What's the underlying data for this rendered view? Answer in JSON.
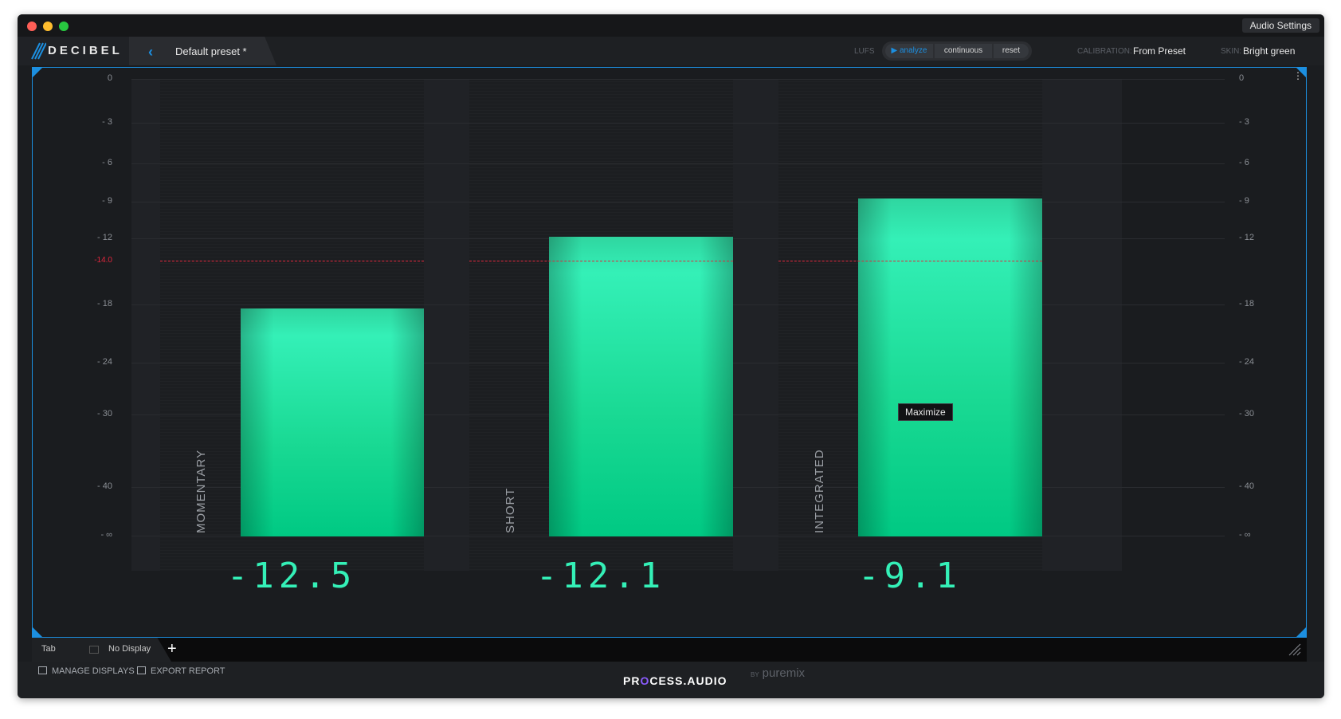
{
  "window": {
    "audio_settings_label": "Audio Settings"
  },
  "toolbar": {
    "logo_text": "DECIBEL",
    "preset_name": "Default preset *",
    "lufs_label": "LUFS",
    "analyze_label": "▶ analyze",
    "continuous_label": "continuous",
    "reset_label": "reset",
    "calibration_label": "CALIBRATION:",
    "calibration_value": "From Preset",
    "skin_label": "SKIN:",
    "skin_value": "Bright green"
  },
  "meter": {
    "scale_left": [
      "0",
      "- 3",
      "- 6",
      "- 9",
      "- 12",
      "- 18",
      "- 24",
      "- 30",
      "- 40",
      "- ∞"
    ],
    "scale_right": [
      "0",
      "- 3",
      "- 6",
      "- 9",
      "- 12",
      "- 18",
      "- 24",
      "- 30",
      "- 40",
      "- ∞"
    ],
    "target_label": "-14.0",
    "target_value": -14.0,
    "meters": [
      {
        "label": "MOMENTARY",
        "readout": "-12.5",
        "value": -12.5,
        "fill_fraction": 0.487
      },
      {
        "label": "SHORT",
        "readout": "-12.1",
        "value": -12.1,
        "fill_fraction": 0.641
      },
      {
        "label": "INTEGRATED",
        "readout": "-9.1",
        "value": -9.1,
        "fill_fraction": 0.723
      }
    ],
    "tooltip": "Maximize",
    "colors": {
      "accent": "#1c8fe0",
      "bar": "#34f0b7",
      "target": "#e0263d"
    }
  },
  "tabs": {
    "tab_label": "Tab",
    "display_label": "No Display",
    "add_label": "+"
  },
  "footer": {
    "manage_displays": "MANAGE DISPLAYS",
    "export_report": "EXPORT REPORT",
    "brand_pre": "PR",
    "brand_o": "O",
    "brand_post": "CESS.AUDIO",
    "by_label": "BY",
    "puremix": "puremix"
  }
}
